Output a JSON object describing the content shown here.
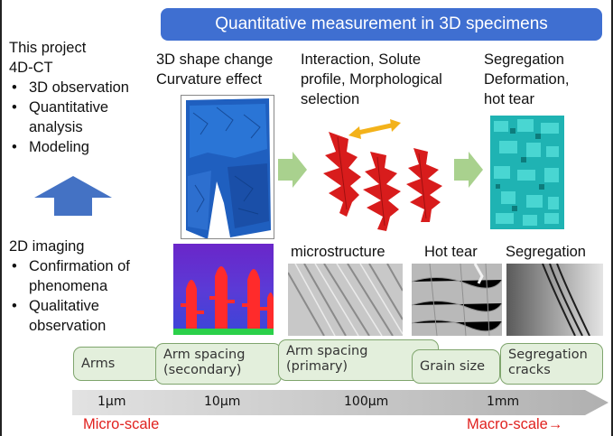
{
  "banner": {
    "title": "Quantitative measurement in 3D specimens"
  },
  "left": {
    "project_lines": [
      "This project",
      "4D-CT"
    ],
    "project_bullets": [
      "3D observation",
      "Quantitative analysis",
      "Modeling"
    ],
    "imaging_title": "2D imaging",
    "imaging_bullets": [
      "Confirmation of phenomena",
      "Qualitative observation"
    ]
  },
  "columns": {
    "col1": [
      "3D shape change",
      "Curvature effect"
    ],
    "col2": [
      "Interaction, Solute",
      "profile, Morphological",
      "selection"
    ],
    "col3": [
      "Segregation",
      "Deformation,",
      "hot tear"
    ]
  },
  "image_labels": {
    "microstructure": "microstructure",
    "hot_tear": "Hot tear",
    "segregation": "Segregation"
  },
  "pills": {
    "arms": "Arms",
    "arm_spacing_secondary": [
      "Arm spacing",
      "(secondary)"
    ],
    "arm_spacing_primary": [
      "Arm spacing",
      "(primary)"
    ],
    "grain_size": "Grain size",
    "segregation_cracks": [
      "Segregation",
      "cracks"
    ]
  },
  "scale": {
    "ticks": [
      "1µm",
      "10µm",
      "100µm",
      "1mm"
    ],
    "micro": "Micro-scale",
    "macro": "Macro-scale→"
  },
  "colors": {
    "banner": "#3f6fd1",
    "up_arrow": "#4472c4",
    "green_arrow": "#a9d18e",
    "dendrite_red": "#d81c1c",
    "accent_red": "#e0221f"
  }
}
